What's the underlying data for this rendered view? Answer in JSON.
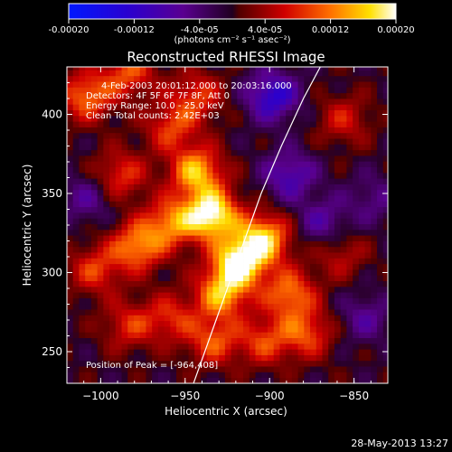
{
  "colorbar": {
    "tick_labels": [
      "-0.00020",
      "-0.00012",
      "-4.0e-05",
      "4.0e-05",
      "0.00012",
      "0.00020"
    ],
    "units": "(photons cm⁻² s⁻¹ asec⁻²)",
    "range": [
      -0.0002,
      0.0002
    ]
  },
  "plot": {
    "title": "Reconstructed RHESSI Image",
    "info_lines": [
      "4-Feb-2003 20:01:12.000 to 20:03:16.000",
      "Detectors: 4F 5F 6F 7F 8F, Att 0",
      "Energy Range: 10.0 - 25.0 keV",
      "Clean    Total counts: 2.42E+03"
    ],
    "peak_label": "Position of Peak = [-964,408]",
    "xlabel": "Heliocentric X (arcsec)",
    "ylabel": "Heliocentric Y (arcsec)",
    "timestamp": "28-May-2013 13:27"
  },
  "chart_data": {
    "type": "heatmap",
    "title": "Reconstructed RHESSI Image",
    "xlabel": "Heliocentric X (arcsec)",
    "ylabel": "Heliocentric Y (arcsec)",
    "xlim": [
      -1020,
      -830
    ],
    "ylim": [
      230,
      430
    ],
    "x_ticks": [
      -1000,
      -950,
      -900,
      -850
    ],
    "x_tick_labels": [
      "−1000",
      "−950",
      "−900",
      "−850"
    ],
    "y_ticks": [
      250,
      300,
      350,
      400
    ],
    "y_tick_labels": [
      "250",
      "300",
      "350",
      "400"
    ],
    "colorbar_range": [
      -0.0002,
      0.0002
    ],
    "colormap": [
      "#0018ff",
      "#3f00a8",
      "#7a0090",
      "#d00000",
      "#ff6a00",
      "#ffd000",
      "#ffffff"
    ],
    "sources": [
      {
        "x": -936,
        "y": 335,
        "intensity": 1.0
      },
      {
        "x": -920,
        "y": 305,
        "intensity": 0.95
      },
      {
        "x": -945,
        "y": 362,
        "intensity": 0.75
      },
      {
        "x": -905,
        "y": 320,
        "intensity": 0.8
      },
      {
        "x": -930,
        "y": 285,
        "intensity": 0.7
      },
      {
        "x": -890,
        "y": 285,
        "intensity": 0.6
      },
      {
        "x": -980,
        "y": 315,
        "intensity": 0.65
      },
      {
        "x": -960,
        "y": 330,
        "intensity": 0.6
      },
      {
        "x": -990,
        "y": 360,
        "intensity": 0.45
      },
      {
        "x": -1010,
        "y": 410,
        "intensity": 0.6
      },
      {
        "x": -985,
        "y": 425,
        "intensity": 0.5
      },
      {
        "x": -960,
        "y": 390,
        "intensity": 0.45
      },
      {
        "x": -945,
        "y": 410,
        "intensity": 0.45
      },
      {
        "x": -960,
        "y": 270,
        "intensity": 0.4
      },
      {
        "x": -935,
        "y": 255,
        "intensity": 0.5
      },
      {
        "x": -905,
        "y": 255,
        "intensity": 0.45
      },
      {
        "x": -880,
        "y": 260,
        "intensity": 0.5
      },
      {
        "x": -860,
        "y": 310,
        "intensity": 0.3
      },
      {
        "x": -858,
        "y": 395,
        "intensity": 0.35
      },
      {
        "x": -985,
        "y": 265,
        "intensity": 0.4
      },
      {
        "x": -1005,
        "y": 300,
        "intensity": 0.45
      },
      {
        "x": -890,
        "y": 360,
        "intensity": -0.45
      },
      {
        "x": -900,
        "y": 410,
        "intensity": -0.6
      },
      {
        "x": -870,
        "y": 330,
        "intensity": -0.35
      },
      {
        "x": -845,
        "y": 270,
        "intensity": -0.3
      },
      {
        "x": -1010,
        "y": 345,
        "intensity": -0.3
      },
      {
        "x": -840,
        "y": 345,
        "intensity": -0.25
      }
    ],
    "limb_curve": [
      {
        "x": -945,
        "y": 230
      },
      {
        "x": -935,
        "y": 260
      },
      {
        "x": -925,
        "y": 290
      },
      {
        "x": -915,
        "y": 320
      },
      {
        "x": -905,
        "y": 350
      },
      {
        "x": -893,
        "y": 380
      },
      {
        "x": -880,
        "y": 410
      },
      {
        "x": -870,
        "y": 430
      }
    ],
    "peak": {
      "x": -964,
      "y": 408
    }
  }
}
